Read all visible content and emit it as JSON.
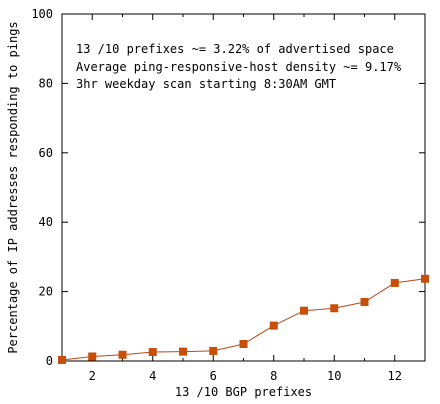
{
  "chart_data": {
    "type": "line",
    "title": "",
    "xlabel": "13 /10 BGP prefixes",
    "ylabel": "Percentage of IP addresses responding to pings",
    "xlim": [
      1,
      13
    ],
    "ylim": [
      0,
      100
    ],
    "x_ticks": [
      2,
      4,
      6,
      8,
      10,
      12
    ],
    "y_ticks": [
      0,
      20,
      40,
      60,
      80,
      100
    ],
    "grid": false,
    "legend": "none",
    "annotations": [
      "13 /10 prefixes ~= 3.22% of advertised space",
      "Average ping-responsive-host density ~= 9.17%",
      "3hr weekday scan starting 8:30AM GMT"
    ],
    "series": [
      {
        "x": [
          1,
          2,
          3,
          4,
          5,
          6,
          7,
          8,
          9,
          10,
          11,
          12,
          13
        ],
        "values": [
          0.3,
          1.3,
          1.8,
          2.6,
          2.7,
          2.9,
          4.9,
          10.2,
          14.5,
          15.2,
          17.0,
          22.5,
          23.7
        ]
      }
    ],
    "colors": {
      "line": "#b34a1a",
      "marker": "#c94e07",
      "axis": "#000000"
    }
  }
}
